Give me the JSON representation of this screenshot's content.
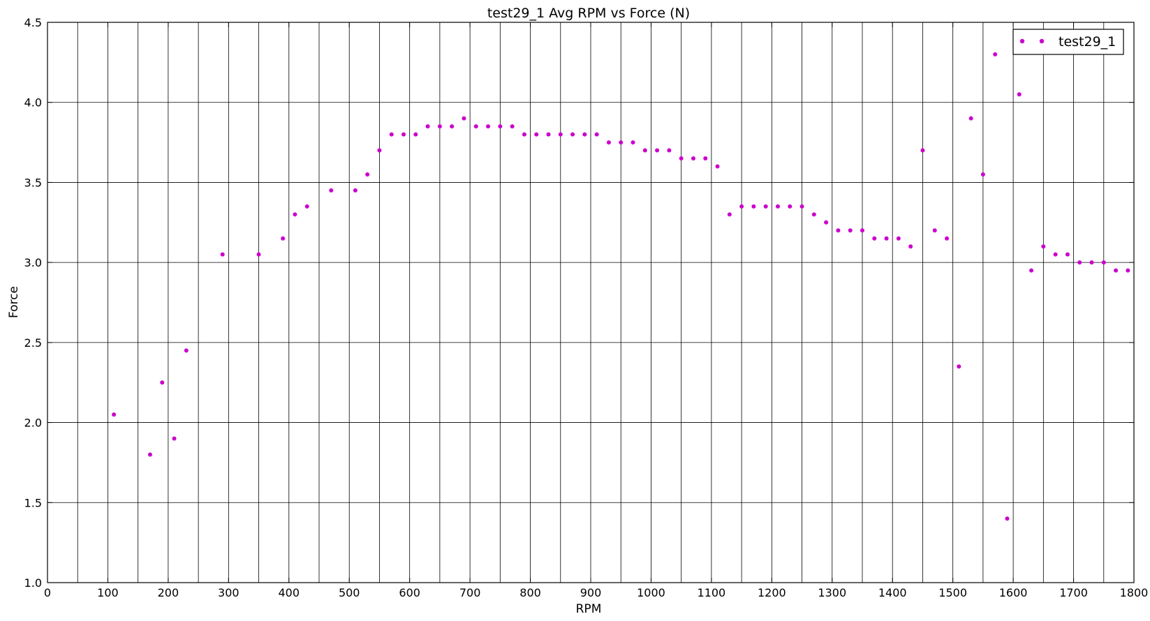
{
  "chart_data": {
    "type": "scatter",
    "title": "test29_1 Avg RPM vs Force (N)",
    "xlabel": "RPM",
    "ylabel": "Force",
    "xlim": [
      0,
      1800
    ],
    "ylim": [
      1.0,
      4.5
    ],
    "xticks": [
      0,
      100,
      200,
      300,
      400,
      500,
      600,
      700,
      800,
      900,
      1000,
      1100,
      1200,
      1300,
      1400,
      1500,
      1600,
      1700,
      1800
    ],
    "xtick_labels": [
      "0",
      "100",
      "200",
      "300",
      "400",
      "500",
      "600",
      "700",
      "800",
      "900",
      "1000",
      "1100",
      "1200",
      "1300",
      "1400",
      "1500",
      "1600",
      "1700",
      "1800"
    ],
    "yticks": [
      1.0,
      1.5,
      2.0,
      2.5,
      3.0,
      3.5,
      4.0,
      4.5
    ],
    "ytick_labels": [
      "1.0",
      "1.5",
      "2.0",
      "2.5",
      "3.0",
      "3.5",
      "4.0",
      "4.5"
    ],
    "grid": {
      "x_every": 50,
      "y_every": 0.5
    },
    "legend": {
      "placement": "top-right"
    },
    "series": [
      {
        "name": "test29_1",
        "color": "#cc00cc",
        "points": [
          [
            110,
            2.05
          ],
          [
            170,
            1.8
          ],
          [
            190,
            2.25
          ],
          [
            210,
            1.9
          ],
          [
            230,
            2.45
          ],
          [
            290,
            3.05
          ],
          [
            350,
            3.05
          ],
          [
            390,
            3.15
          ],
          [
            410,
            3.3
          ],
          [
            430,
            3.35
          ],
          [
            470,
            3.45
          ],
          [
            510,
            3.45
          ],
          [
            530,
            3.55
          ],
          [
            550,
            3.7
          ],
          [
            570,
            3.8
          ],
          [
            590,
            3.8
          ],
          [
            610,
            3.8
          ],
          [
            630,
            3.85
          ],
          [
            650,
            3.85
          ],
          [
            670,
            3.85
          ],
          [
            690,
            3.9
          ],
          [
            710,
            3.85
          ],
          [
            730,
            3.85
          ],
          [
            750,
            3.85
          ],
          [
            770,
            3.85
          ],
          [
            790,
            3.8
          ],
          [
            810,
            3.8
          ],
          [
            830,
            3.8
          ],
          [
            850,
            3.8
          ],
          [
            870,
            3.8
          ],
          [
            890,
            3.8
          ],
          [
            910,
            3.8
          ],
          [
            930,
            3.75
          ],
          [
            950,
            3.75
          ],
          [
            970,
            3.75
          ],
          [
            990,
            3.7
          ],
          [
            1010,
            3.7
          ],
          [
            1030,
            3.7
          ],
          [
            1050,
            3.65
          ],
          [
            1070,
            3.65
          ],
          [
            1090,
            3.65
          ],
          [
            1110,
            3.6
          ],
          [
            1130,
            3.3
          ],
          [
            1150,
            3.35
          ],
          [
            1170,
            3.35
          ],
          [
            1190,
            3.35
          ],
          [
            1210,
            3.35
          ],
          [
            1230,
            3.35
          ],
          [
            1250,
            3.35
          ],
          [
            1270,
            3.3
          ],
          [
            1290,
            3.25
          ],
          [
            1310,
            3.2
          ],
          [
            1330,
            3.2
          ],
          [
            1350,
            3.2
          ],
          [
            1370,
            3.15
          ],
          [
            1390,
            3.15
          ],
          [
            1410,
            3.15
          ],
          [
            1430,
            3.1
          ],
          [
            1450,
            3.7
          ],
          [
            1470,
            3.2
          ],
          [
            1490,
            3.15
          ],
          [
            1510,
            2.35
          ],
          [
            1530,
            3.9
          ],
          [
            1550,
            3.55
          ],
          [
            1570,
            4.3
          ],
          [
            1590,
            1.4
          ],
          [
            1610,
            4.05
          ],
          [
            1630,
            2.95
          ],
          [
            1650,
            3.1
          ],
          [
            1670,
            3.05
          ],
          [
            1690,
            3.05
          ],
          [
            1710,
            3.0
          ],
          [
            1730,
            3.0
          ],
          [
            1750,
            3.0
          ],
          [
            1770,
            2.95
          ],
          [
            1790,
            2.95
          ]
        ]
      }
    ]
  }
}
